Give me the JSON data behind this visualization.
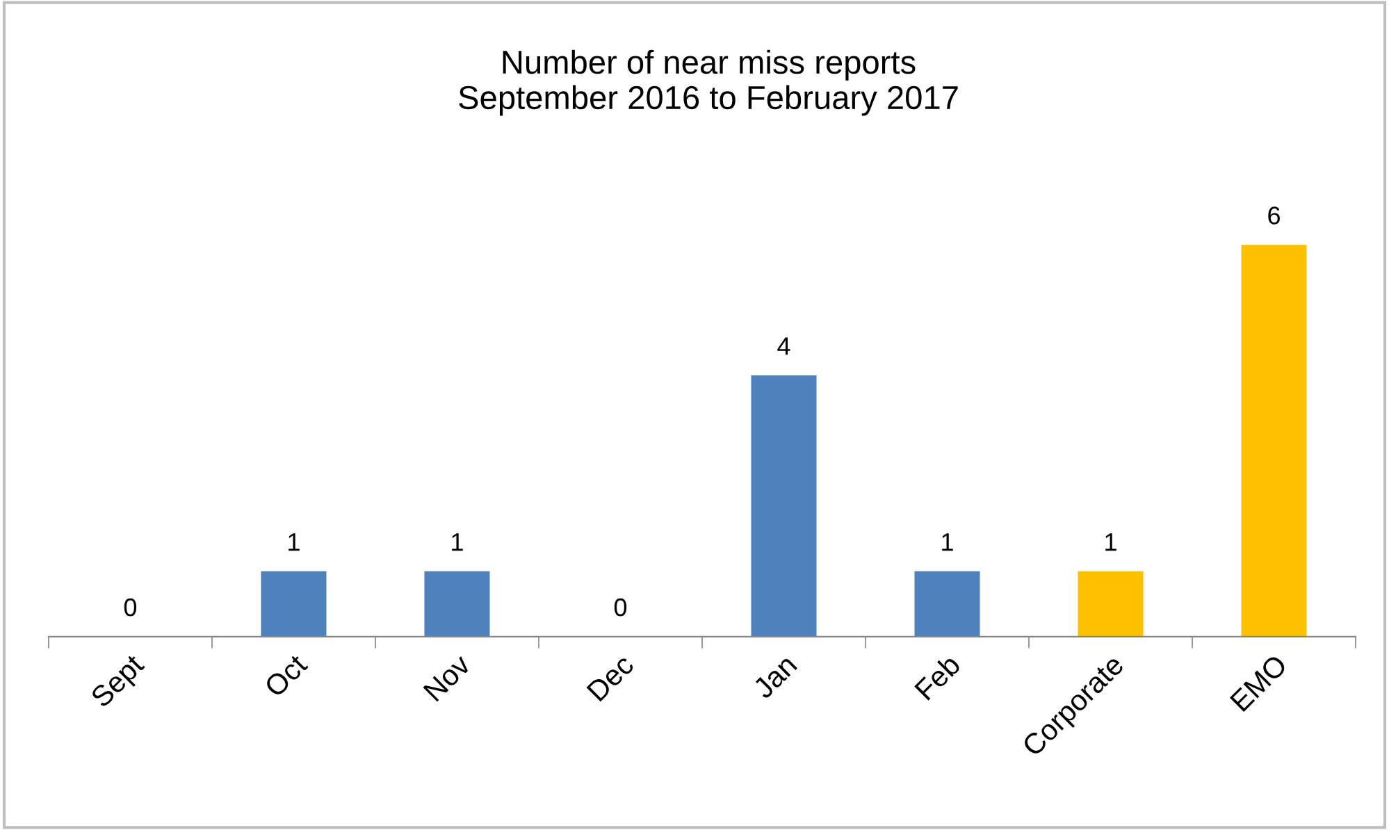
{
  "chart_data": {
    "type": "bar",
    "title": "Number of near miss reports\nSeptember 2016 to February 2017",
    "categories": [
      "Sept",
      "Oct",
      "Nov",
      "Dec",
      "Jan",
      "Feb",
      "Corporate",
      "EMO"
    ],
    "values": [
      0,
      1,
      1,
      0,
      4,
      1,
      1,
      6
    ],
    "colors": [
      "#4f81bd",
      "#4f81bd",
      "#4f81bd",
      "#4f81bd",
      "#4f81bd",
      "#4f81bd",
      "#ffc000",
      "#ffc000"
    ],
    "data_labels": true,
    "grid": false,
    "legend": false,
    "tick_labels": "x"
  }
}
